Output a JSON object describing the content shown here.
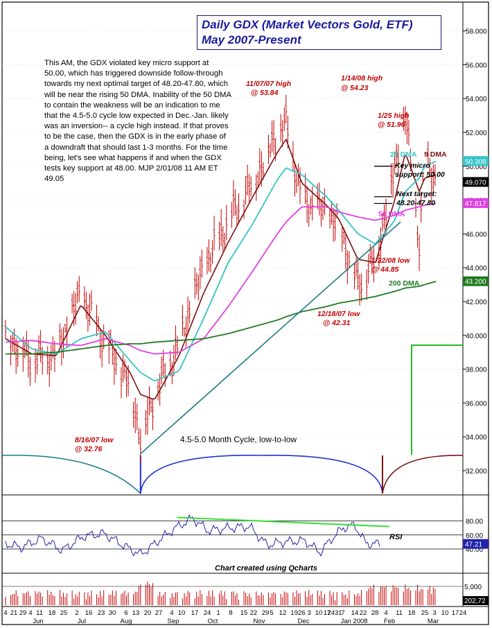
{
  "title": {
    "line1": "Daily GDX (Market Vectors Gold, ETF)",
    "line2": "May 2007-Present"
  },
  "commentary": "This AM, the GDX violated key micro support at 50.00, which has triggered downside follow-through towards my next optimal target of 48.20-47.80, which will be near the rising 50 DMA. Inability of the 50 DMA to contain the weakness will be an indication to me that the 4.5-5.0 cycle low expected in Dec.-Jan. likely was an inversion-- a cycle high instead. If that proves to be the case, then the GDX is in the early phase of a downdraft that should last 1-3 months. For the time being, let's see what happens if and when the GDX tests key support at 48.00. MJP 2/01/08 11 AM ET 49.05",
  "annotations": {
    "high_nov": [
      "11/07/07 high",
      "@ 53.84"
    ],
    "high_jan": [
      "1/14/08 high",
      "@ 54.23"
    ],
    "high_jan25": [
      "1/25 high",
      "@ 51.96"
    ],
    "low_aug": [
      "8/16/07 low",
      "@ 32.76"
    ],
    "low_dec": [
      "12/18/07 low",
      "@ 42.31"
    ],
    "low_jan22": [
      "1/22/08 low",
      "@ 44.85"
    ],
    "ma20": "20 DMA",
    "ma9": "9 DMA",
    "ma50": "50 DMA",
    "ma200": "200 DMA",
    "key_micro": [
      "Key micro",
      "support: 50.00"
    ],
    "next_target": [
      "Next target:",
      "48.20-47.80"
    ],
    "cycle": "4.5-5.0 Month Cycle, low-to-low",
    "rsi": "RSI",
    "credit": "Chart created using Qcharts"
  },
  "price_axis": {
    "ticks": [
      "58.000",
      "56.000",
      "54.000",
      "52.000",
      "50.000",
      "48.000",
      "46.000",
      "44.000",
      "42.000",
      "40.000",
      "38.000",
      "36.000",
      "34.000",
      "32.000"
    ],
    "tick_values": [
      58,
      56,
      54,
      52,
      50,
      48,
      46,
      44,
      42,
      40,
      38,
      36,
      34,
      32
    ],
    "badges": [
      {
        "text": "50.308",
        "value": 50.308,
        "color": "#33c3c8"
      },
      {
        "text": "49.070",
        "value": 49.07,
        "color": "#000000"
      },
      {
        "text": "47.817",
        "value": 47.817,
        "color": "#e040e0"
      },
      {
        "text": "43.200",
        "value": 43.2,
        "color": "#1f7a1f"
      }
    ]
  },
  "rsi_axis": {
    "ticks": [
      "80.00",
      "60.00",
      "40.00"
    ],
    "tick_values": [
      80,
      60,
      40
    ],
    "badge": "47.21",
    "badge_value": 47.21
  },
  "volume_axis": {
    "ticks": [
      "5,000"
    ],
    "tick_values": [
      5000
    ],
    "badge": "202,72"
  },
  "x_axis": {
    "day_labels": [
      "4",
      "21",
      "29",
      "4",
      "11",
      "18",
      "25",
      "2",
      "16",
      "23",
      "30",
      "6",
      "13",
      "20",
      "27",
      "4",
      "10",
      "17",
      "24",
      "1",
      "8",
      "15",
      "22",
      "29",
      "5",
      "12",
      "1926",
      "3",
      "10",
      "17",
      "2431",
      "7",
      "14",
      "22",
      "28",
      "4",
      "11",
      "18",
      "25",
      "3",
      "10",
      "17",
      "24"
    ],
    "month_labels": [
      "Jun",
      "Jul",
      "Aug",
      "Sep",
      "Oct",
      "Nov",
      "Dec",
      "Jan 2008",
      "Feb",
      "Mar"
    ]
  },
  "colors": {
    "price": "#c00000",
    "ma9": "#7a1010",
    "ma20": "#33c3c8",
    "ma50": "#e040e0",
    "ma200": "#1f7a1f",
    "trendline": "#1a7a8a",
    "cycle": "#1a33cc",
    "cycle_alt": "#7a1010",
    "rsi": "#2222aa",
    "rsi_divergence": "#33dd33",
    "annotation": "#c00000",
    "commentary": "#000000",
    "target_box": "#22bb22"
  },
  "chart_data": {
    "type": "line",
    "title": "Daily GDX (Market Vectors Gold, ETF) May 2007-Present",
    "xlabel": "",
    "ylabel": "",
    "ylim": [
      31.5,
      59
    ],
    "x": [
      "2007-05-31",
      "2007-06-15",
      "2007-06-29",
      "2007-07-13",
      "2007-07-27",
      "2007-08-10",
      "2007-08-16",
      "2007-08-24",
      "2007-09-07",
      "2007-09-21",
      "2007-10-05",
      "2007-10-19",
      "2007-11-02",
      "2007-11-07",
      "2007-11-16",
      "2007-11-30",
      "2007-12-07",
      "2007-12-18",
      "2007-12-28",
      "2008-01-08",
      "2008-01-14",
      "2008-01-22",
      "2008-01-25",
      "2008-02-01"
    ],
    "series": [
      {
        "name": "GDX close",
        "values": [
          40.0,
          38.6,
          38.9,
          42.5,
          39.5,
          37.0,
          34.0,
          36.5,
          39.5,
          44.0,
          46.8,
          49.0,
          52.0,
          52.5,
          48.0,
          47.3,
          46.5,
          43.0,
          44.5,
          50.0,
          53.0,
          45.5,
          50.5,
          49.05
        ]
      },
      {
        "name": "9 DMA",
        "values": [
          39.8,
          38.9,
          38.8,
          41.8,
          40.0,
          37.8,
          36.5,
          36.2,
          38.8,
          42.5,
          45.5,
          48.2,
          50.8,
          51.6,
          49.0,
          47.7,
          46.9,
          44.5,
          44.3,
          48.0,
          50.8,
          48.5,
          49.3,
          49.5
        ]
      },
      {
        "name": "20 DMA",
        "values": [
          40.5,
          39.2,
          38.9,
          39.8,
          40.2,
          38.5,
          37.8,
          37.3,
          37.9,
          41.0,
          44.3,
          46.6,
          49.2,
          49.9,
          49.5,
          48.2,
          47.4,
          46.0,
          45.4,
          46.8,
          48.5,
          49.3,
          50.0,
          50.3
        ]
      },
      {
        "name": "50 DMA",
        "values": [
          39.6,
          39.7,
          39.5,
          39.4,
          39.8,
          39.4,
          39.1,
          38.9,
          39.0,
          39.8,
          41.7,
          43.8,
          46.0,
          46.7,
          47.6,
          47.6,
          47.3,
          47.0,
          46.8,
          47.1,
          47.4,
          47.6,
          47.7,
          47.8
        ]
      },
      {
        "name": "200 DMA",
        "values": [
          38.9,
          38.9,
          39.0,
          39.2,
          39.4,
          39.5,
          39.5,
          39.6,
          39.7,
          39.8,
          40.1,
          40.5,
          40.9,
          41.1,
          41.4,
          41.7,
          41.9,
          42.1,
          42.3,
          42.6,
          42.8,
          42.9,
          43.0,
          43.2
        ]
      }
    ],
    "rsi": {
      "name": "RSI",
      "ylim": [
        20,
        90
      ],
      "last": 47.21
    }
  }
}
